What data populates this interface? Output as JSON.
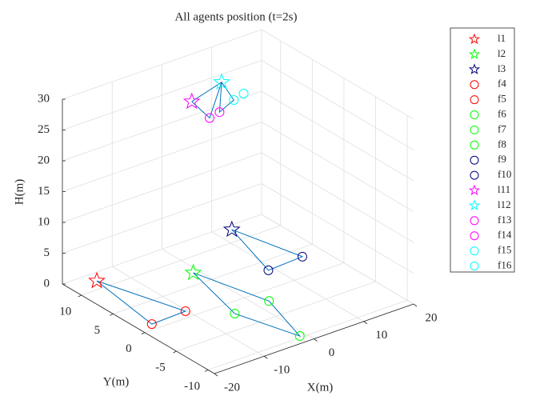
{
  "chart_data": {
    "type": "scatter3d",
    "title": "All agents position (t=2s)",
    "xlabel": "X(m)",
    "ylabel": "Y(m)",
    "zlabel": "H(m)",
    "xlim": [
      -20,
      20
    ],
    "ylim": [
      -11,
      13
    ],
    "zlim": [
      0,
      30
    ],
    "xticks": [
      -20,
      -10,
      0,
      10,
      20
    ],
    "yticks": [
      -10,
      -5,
      0,
      5,
      10
    ],
    "zticks": [
      0,
      5,
      10,
      15,
      20,
      25,
      30
    ],
    "grid": true,
    "legend": "outside-right",
    "link_color": "#0072bd",
    "links": [
      [
        0,
        4,
        3,
        0
      ],
      [
        1,
        5,
        7,
        6,
        1
      ],
      [
        2,
        9,
        8,
        2
      ],
      [
        10,
        12,
        11,
        10
      ],
      [
        11,
        13,
        14,
        11
      ]
    ],
    "series": [
      {
        "name": "l1",
        "color": "#ff0000",
        "marker": "star",
        "x": [
          -15
        ],
        "y": [
          11.5
        ],
        "z": [
          0
        ]
      },
      {
        "name": "l2",
        "color": "#00ff00",
        "marker": "star",
        "x": [
          -1.1
        ],
        "y": [
          7.2
        ],
        "z": [
          0
        ]
      },
      {
        "name": "l3",
        "color": "#000080",
        "marker": "star",
        "x": [
          13
        ],
        "y": [
          12.2
        ],
        "z": [
          0
        ]
      },
      {
        "name": "f4",
        "color": "#ff0000",
        "marker": "circle",
        "x": [
          -17.3
        ],
        "y": [
          1
        ],
        "z": [
          0
        ]
      },
      {
        "name": "f5",
        "color": "#ff0000",
        "marker": "circle",
        "x": [
          -10.3
        ],
        "y": [
          1.2
        ],
        "z": [
          0
        ]
      },
      {
        "name": "f6",
        "color": "#00ff00",
        "marker": "circle",
        "x": [
          2.4
        ],
        "y": [
          -2
        ],
        "z": [
          0
        ]
      },
      {
        "name": "f7",
        "color": "#00ff00",
        "marker": "circle",
        "x": [
          -4.6
        ],
        "y": [
          -2.1
        ],
        "z": [
          0
        ]
      },
      {
        "name": "f8",
        "color": "#00ff00",
        "marker": "circle",
        "x": [
          -1.2
        ],
        "y": [
          -9.7
        ],
        "z": [
          0
        ]
      },
      {
        "name": "f9",
        "color": "#000080",
        "marker": "circle",
        "x": [
          8.9
        ],
        "y": [
          3.2
        ],
        "z": [
          0
        ]
      },
      {
        "name": "f10",
        "color": "#000080",
        "marker": "circle",
        "x": [
          16.1
        ],
        "y": [
          3.5
        ],
        "z": [
          0
        ]
      },
      {
        "name": "l11",
        "color": "#ff00ff",
        "marker": "star",
        "x": [
          -4.2
        ],
        "y": [
          5
        ],
        "z": [
          30
        ]
      },
      {
        "name": "l12",
        "color": "#00ffff",
        "marker": "star",
        "x": [
          3.7
        ],
        "y": [
          6.5
        ],
        "z": [
          30
        ]
      },
      {
        "name": "f13",
        "color": "#ff00ff",
        "marker": "circle",
        "x": [
          -1.5
        ],
        "y": [
          4.3
        ],
        "z": [
          27
        ]
      },
      {
        "name": "f14",
        "color": "#ff00ff",
        "marker": "circle",
        "x": [
          1.0
        ],
        "y": [
          4.7
        ],
        "z": [
          27
        ]
      },
      {
        "name": "f15",
        "color": "#00ffff",
        "marker": "circle",
        "x": [
          5.4
        ],
        "y": [
          5.9
        ],
        "z": [
          27
        ]
      },
      {
        "name": "f16",
        "color": "#00ffff",
        "marker": "circle",
        "x": [
          8.0
        ],
        "y": [
          6.4
        ],
        "z": [
          27
        ]
      }
    ]
  }
}
